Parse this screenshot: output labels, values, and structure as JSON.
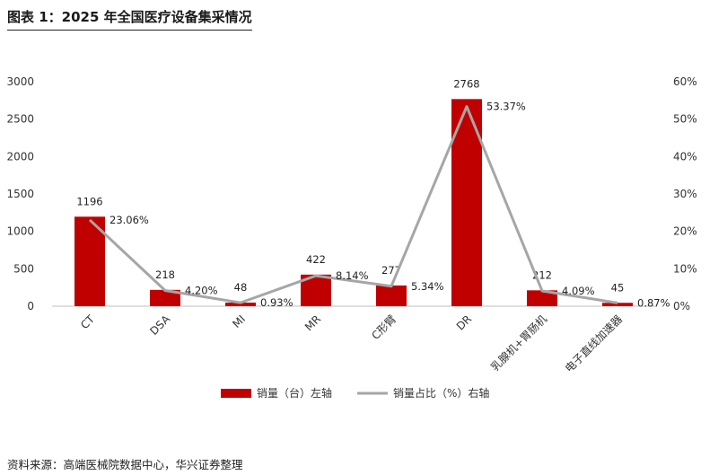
{
  "figure_title": "图表 1：2025 年全国医疗设备集采情况",
  "source_note": "资料来源：高端医械院数据中心，华兴证券整理",
  "colors": {
    "bar": "#C00000",
    "line": "#A6A6A6"
  },
  "chart_data": {
    "type": "bar",
    "categories": [
      "CT",
      "DSA",
      "MI",
      "MR",
      "C形臂",
      "DR",
      "乳腺机+胃肠机",
      "电子直线加速器"
    ],
    "series": [
      {
        "name": "销量（台）左轴",
        "type": "bar",
        "axis": "left",
        "values": [
          1196,
          218,
          48,
          422,
          277,
          2768,
          212,
          45
        ],
        "labels": [
          "1196",
          "218",
          "48",
          "422",
          "277",
          "2768",
          "212",
          "45"
        ]
      },
      {
        "name": "销量占比（%）右轴",
        "type": "line",
        "axis": "right",
        "values": [
          23.06,
          4.2,
          0.93,
          8.14,
          5.34,
          53.37,
          4.09,
          0.87
        ],
        "labels": [
          "23.06%",
          "4.20%",
          "0.93%",
          "8.14%",
          "5.34%",
          "53.37%",
          "4.09%",
          "0.87%"
        ]
      }
    ],
    "y_left": {
      "min": 0,
      "max": 3000,
      "ticks": [
        "0",
        "500",
        "1000",
        "1500",
        "2000",
        "2500",
        "3000"
      ]
    },
    "y_right": {
      "min": 0,
      "max": 60,
      "ticks": [
        "0%",
        "10%",
        "20%",
        "30%",
        "40%",
        "50%",
        "60%"
      ]
    },
    "grid": false,
    "legend_position": "bottom"
  }
}
